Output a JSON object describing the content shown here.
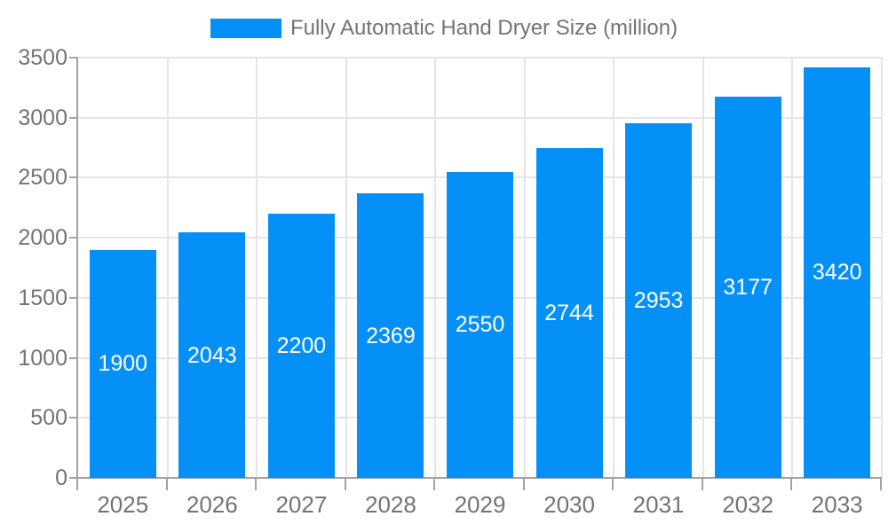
{
  "chart_data": {
    "type": "bar",
    "title": "",
    "categories": [
      "2025",
      "2026",
      "2027",
      "2028",
      "2029",
      "2030",
      "2031",
      "2032",
      "2033"
    ],
    "series": [
      {
        "name": "Fully Automatic Hand Dryer Size (million)",
        "values": [
          1900,
          2043,
          2200,
          2369,
          2550,
          2744,
          2953,
          3177,
          3420
        ]
      }
    ],
    "xlabel": "",
    "ylabel": "",
    "ylim": [
      0,
      3500
    ],
    "ytick_step": 500,
    "yticks": [
      0,
      500,
      1000,
      1500,
      2000,
      2500,
      3000,
      3500
    ],
    "grid": "horizontal and vertical light gridlines",
    "legend_position": "top-center",
    "value_labels": "white, centered inside each bar"
  },
  "colors": {
    "bar": "#0590f8",
    "grid": "#e5e5e5",
    "axis": "#a3a3a3",
    "tick_text": "#737373",
    "legend_text": "#737373",
    "value_text": "#ffffff",
    "background": "#ffffff"
  }
}
